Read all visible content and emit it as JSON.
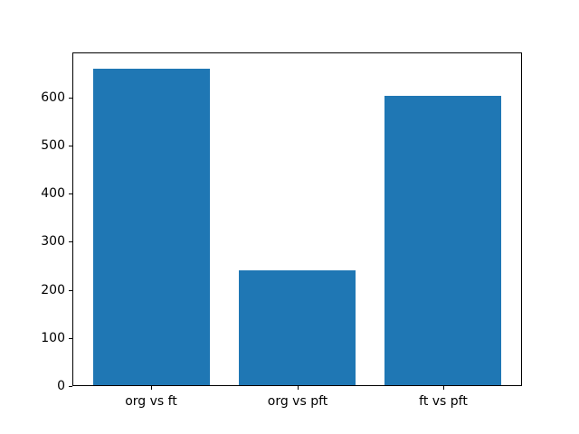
{
  "chart_data": {
    "type": "bar",
    "categories": [
      "org vs ft",
      "org vs pft",
      "ft vs pft"
    ],
    "values": [
      660,
      240,
      603
    ],
    "title": "",
    "xlabel": "",
    "ylabel": "",
    "xlim": [
      -0.54,
      2.54
    ],
    "ylim": [
      0,
      693
    ],
    "yticks": [
      0,
      100,
      200,
      300,
      400,
      500,
      600
    ],
    "bar_width": 0.8,
    "bar_color": "#1f77b4",
    "axis_color": "#000000",
    "background_color": "#ffffff",
    "grid": false,
    "legend_position": "none"
  }
}
